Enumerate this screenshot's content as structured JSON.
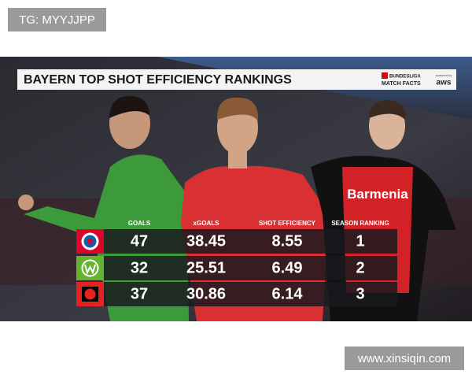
{
  "watermark_top": "TG: MYYJJPP",
  "watermark_bottom": "www.xinsiqin.com",
  "header": {
    "title": "BAYERN TOP SHOT EFFICIENCY RANKINGS",
    "brand_line1": "BUNDESLIGA",
    "brand_line2": "MATCH FACTS",
    "powered": "powered by",
    "sponsor": "aws"
  },
  "table": {
    "columns": [
      "GOALS",
      "xGOALS",
      "SHOT EFFICIENCY",
      "SEASON RANKING"
    ],
    "rows": [
      [
        47,
        38.45,
        8.55,
        1
      ],
      [
        32,
        25.51,
        6.49,
        2
      ],
      [
        37,
        30.86,
        6.14,
        3
      ]
    ]
  },
  "jersey_text": "Barmenia"
}
